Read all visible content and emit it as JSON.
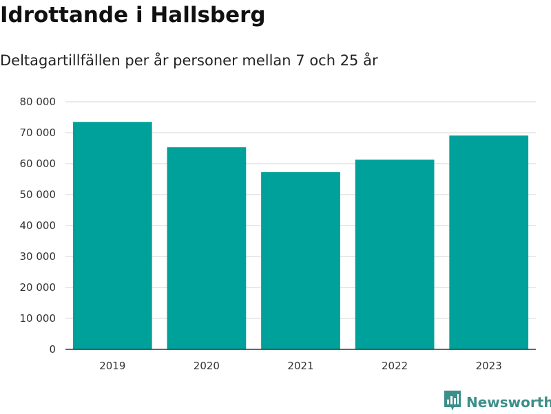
{
  "header": {
    "title": "Idrottande i Hallsberg",
    "subtitle": "Deltagartillfällen per år personer mellan 7 och 25 år"
  },
  "brand": {
    "name": "Newsworthy",
    "icon": "newsworthy-logo-icon"
  },
  "chart_data": {
    "type": "bar",
    "title": "Idrottande i Hallsberg",
    "subtitle": "Deltagartillfällen per år personer mellan 7 och 25 år",
    "categories": [
      "2019",
      "2020",
      "2021",
      "2022",
      "2023"
    ],
    "values": [
      73500,
      65300,
      57300,
      61300,
      69100
    ],
    "yticks": [
      0,
      10000,
      20000,
      30000,
      40000,
      50000,
      60000,
      70000,
      80000
    ],
    "ytick_labels": [
      "0",
      "10 000",
      "20 000",
      "30 000",
      "40 000",
      "50 000",
      "60 000",
      "70 000",
      "80 000"
    ],
    "ylim": [
      0,
      80000
    ],
    "xlabel": "",
    "ylabel": "",
    "grid": true,
    "bar_color": "#00a19a",
    "grid_color": "#dddddd",
    "axis_color": "#333333"
  }
}
